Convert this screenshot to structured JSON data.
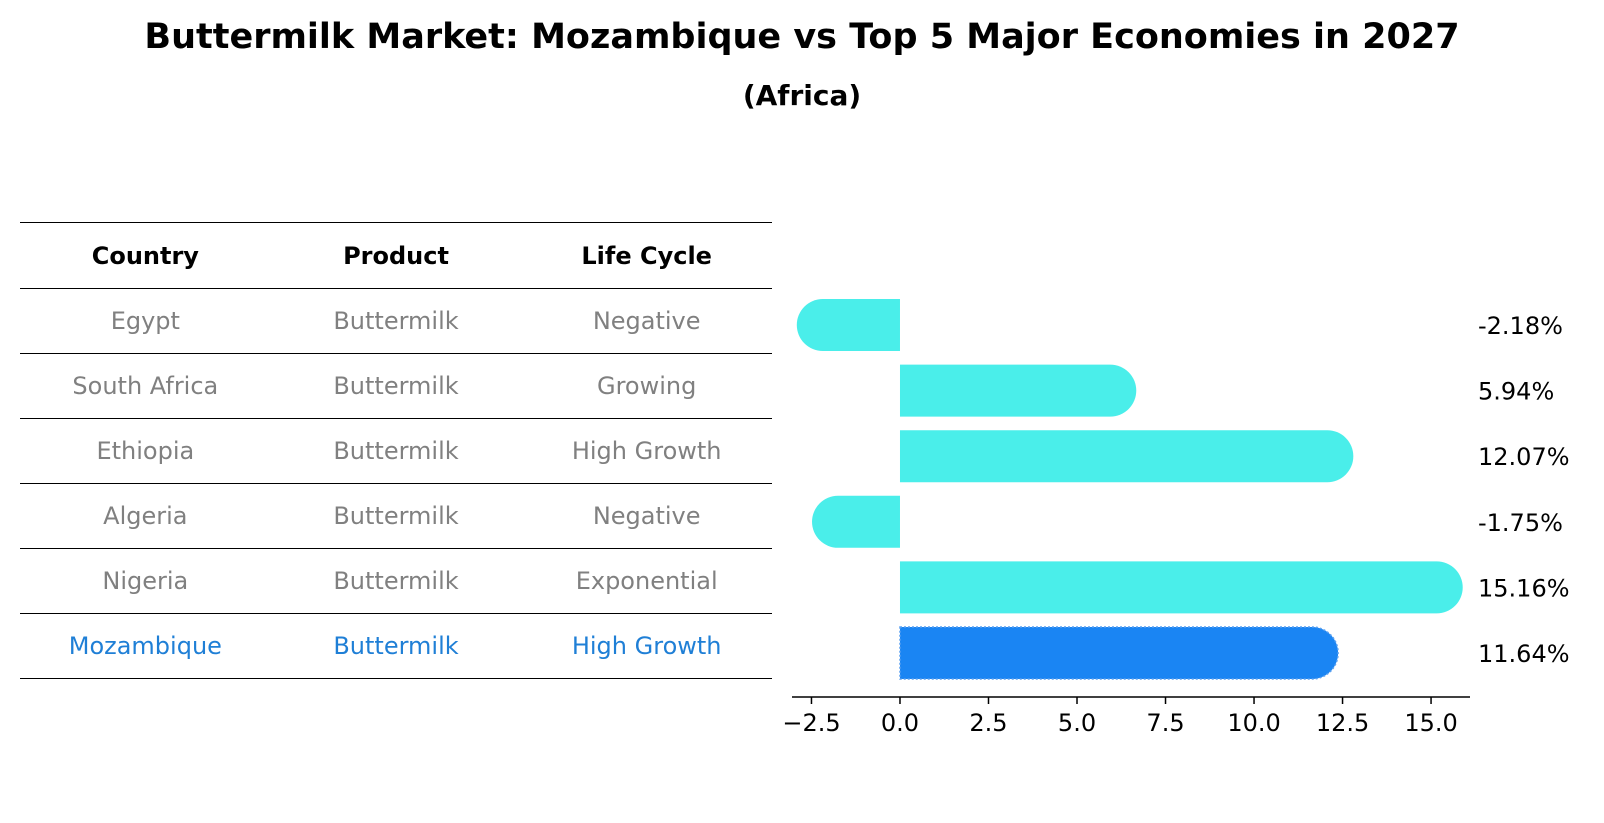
{
  "title": "Buttermilk Market: Mozambique vs Top 5 Major Economies in 2027",
  "subtitle": "(Africa)",
  "table": {
    "headers": [
      "Country",
      "Product",
      "Life Cycle"
    ],
    "rows": [
      [
        "Egypt",
        "Buttermilk",
        "Negative"
      ],
      [
        "South Africa",
        "Buttermilk",
        "Growing"
      ],
      [
        "Ethiopia",
        "Buttermilk",
        "High Growth"
      ],
      [
        "Algeria",
        "Buttermilk",
        "Negative"
      ],
      [
        "Nigeria",
        "Buttermilk",
        "Exponential"
      ],
      [
        "Mozambique",
        "Buttermilk",
        "High Growth"
      ]
    ],
    "highlight_row": 5
  },
  "colors": {
    "bar": "#4aeeea",
    "highlight_bar": "#1a85f3",
    "highlight_text": "#1f7fd6",
    "muted_text": "#808080"
  },
  "chart_data": {
    "type": "bar",
    "orientation": "horizontal",
    "categories": [
      "Egypt",
      "South Africa",
      "Ethiopia",
      "Algeria",
      "Nigeria",
      "Mozambique"
    ],
    "values": [
      -2.18,
      5.94,
      12.07,
      -1.75,
      15.16,
      11.64
    ],
    "value_labels": [
      "-2.18%",
      "5.94%",
      "12.07%",
      "-1.75%",
      "15.16%",
      "11.64%"
    ],
    "highlight_index": 5,
    "xlim": [
      -3.05,
      16.1
    ],
    "xticks": [
      -2.5,
      0.0,
      2.5,
      5.0,
      7.5,
      10.0,
      12.5,
      15.0
    ],
    "xtick_labels": [
      "−2.5",
      "0.0",
      "2.5",
      "5.0",
      "7.5",
      "10.0",
      "12.5",
      "15.0"
    ],
    "grid": false
  }
}
